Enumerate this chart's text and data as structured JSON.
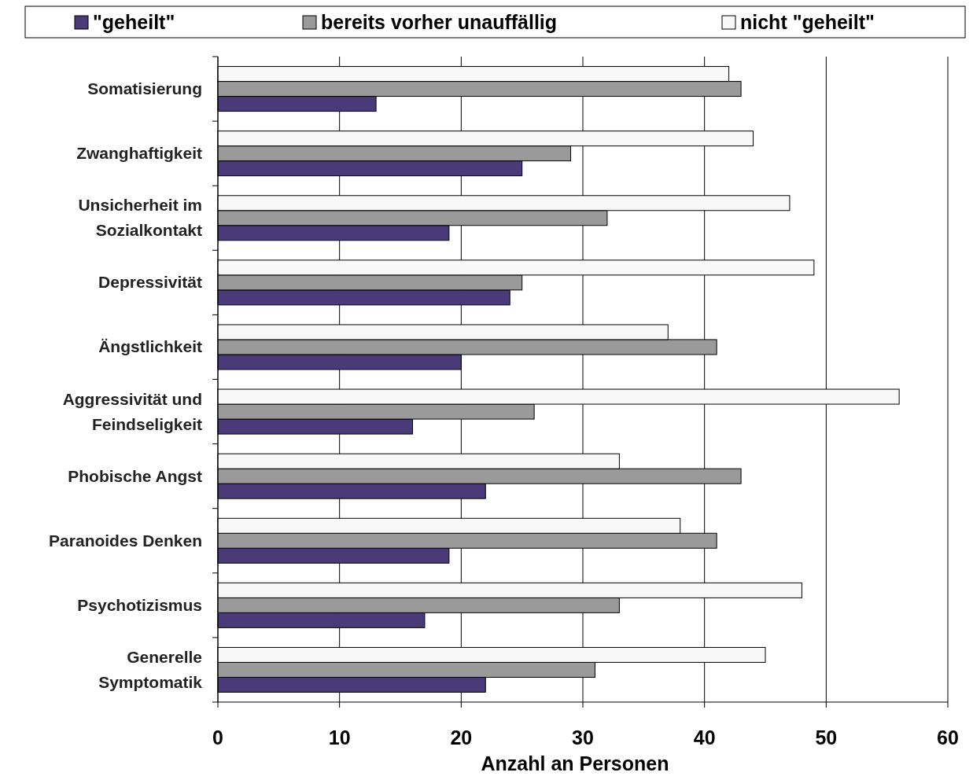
{
  "chart_data": {
    "type": "bar",
    "orientation": "horizontal",
    "xlabel": "Anzahl an Personen",
    "categories": [
      "Somatisierung",
      "Zwanghaftigkeit",
      "Unsicherheit im Sozialkontakt",
      "Depressivität",
      "Ängstlichkeit",
      "Aggressivität und Feindseligkeit",
      "Phobische Angst",
      "Paranoides Denken",
      "Psychotizismus",
      "Generelle Symptomatik"
    ],
    "series": [
      {
        "name": "\"geheilt\"",
        "color": "#4b3a78",
        "values": [
          13,
          25,
          19,
          24,
          20,
          16,
          22,
          19,
          17,
          22
        ]
      },
      {
        "name": "bereits vorher unauffällig",
        "color": "#9a9a9a",
        "values": [
          43,
          29,
          32,
          25,
          41,
          26,
          43,
          41,
          33,
          31
        ]
      },
      {
        "name": "nicht \"geheilt\"",
        "color": "#f8f8f8",
        "values": [
          42,
          44,
          47,
          49,
          37,
          56,
          33,
          38,
          48,
          45
        ]
      }
    ],
    "xlim": [
      0,
      60
    ],
    "xticks": [
      0,
      10,
      20,
      30,
      40,
      50,
      60
    ],
    "grid": "x",
    "legend": "top"
  }
}
